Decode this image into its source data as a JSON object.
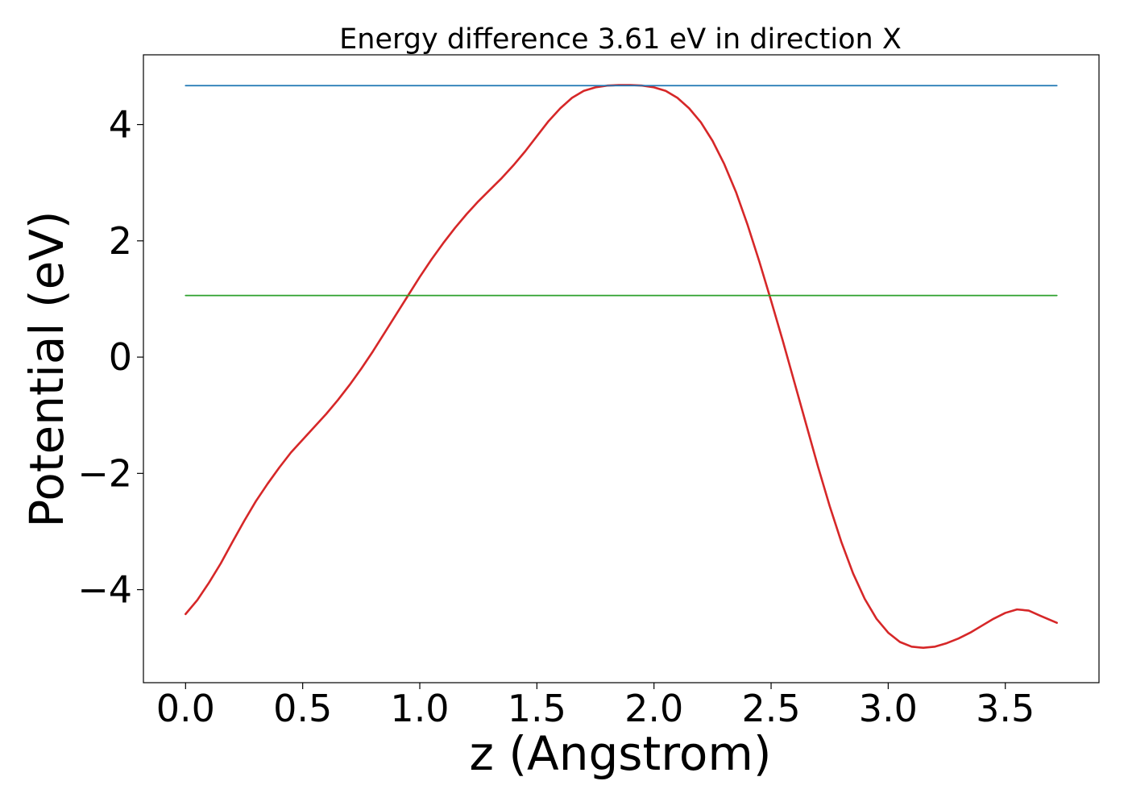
{
  "chart_data": {
    "type": "line",
    "title": "Energy difference 3.61 eV in direction X",
    "xlabel": "z (Angstrom)",
    "ylabel": "Potential (eV)",
    "xlim": [
      -0.18,
      3.9
    ],
    "ylim": [
      -5.6,
      5.2
    ],
    "xticks": [
      0.0,
      0.5,
      1.0,
      1.5,
      2.0,
      2.5,
      3.0,
      3.5
    ],
    "xtick_labels": [
      "0.0",
      "0.5",
      "1.0",
      "1.5",
      "2.0",
      "2.5",
      "3.0",
      "3.5"
    ],
    "yticks": [
      -4,
      -2,
      0,
      2,
      4
    ],
    "ytick_labels": [
      "−4",
      "−2",
      "0",
      "2",
      "4"
    ],
    "grid": false,
    "series": [
      {
        "color": "#d62728",
        "x": [
          0.0,
          0.05,
          0.1,
          0.15,
          0.2,
          0.25,
          0.3,
          0.35,
          0.4,
          0.45,
          0.5,
          0.55,
          0.6,
          0.65,
          0.7,
          0.75,
          0.8,
          0.85,
          0.9,
          0.95,
          1.0,
          1.05,
          1.1,
          1.15,
          1.2,
          1.25,
          1.3,
          1.35,
          1.4,
          1.45,
          1.5,
          1.55,
          1.6,
          1.65,
          1.7,
          1.75,
          1.8,
          1.85,
          1.9,
          1.95,
          2.0,
          2.05,
          2.1,
          2.15,
          2.2,
          2.25,
          2.3,
          2.35,
          2.4,
          2.45,
          2.5,
          2.55,
          2.6,
          2.65,
          2.7,
          2.75,
          2.8,
          2.85,
          2.9,
          2.95,
          3.0,
          3.05,
          3.1,
          3.15,
          3.2,
          3.25,
          3.3,
          3.35,
          3.4,
          3.45,
          3.5,
          3.55,
          3.6,
          3.65,
          3.72
        ],
        "y": [
          -4.42,
          -4.18,
          -3.88,
          -3.55,
          -3.18,
          -2.82,
          -2.48,
          -2.18,
          -1.9,
          -1.64,
          -1.42,
          -1.2,
          -0.98,
          -0.74,
          -0.48,
          -0.2,
          0.1,
          0.42,
          0.74,
          1.06,
          1.38,
          1.68,
          1.96,
          2.22,
          2.46,
          2.68,
          2.88,
          3.08,
          3.3,
          3.54,
          3.8,
          4.06,
          4.28,
          4.46,
          4.58,
          4.64,
          4.67,
          4.68,
          4.68,
          4.67,
          4.64,
          4.58,
          4.46,
          4.28,
          4.04,
          3.72,
          3.32,
          2.84,
          2.27,
          1.64,
          0.97,
          0.28,
          -0.44,
          -1.16,
          -1.88,
          -2.56,
          -3.18,
          -3.72,
          -4.16,
          -4.5,
          -4.74,
          -4.9,
          -4.98,
          -5.0,
          -4.98,
          -4.92,
          -4.84,
          -4.74,
          -4.62,
          -4.5,
          -4.4,
          -4.34,
          -4.36,
          -4.45,
          -4.57
        ]
      },
      {
        "color": "#1f77b4",
        "x": [
          0.0,
          3.72
        ],
        "y": [
          4.67,
          4.67
        ]
      },
      {
        "color": "#2ca02c",
        "x": [
          0.0,
          3.72
        ],
        "y": [
          1.06,
          1.06
        ]
      }
    ]
  }
}
